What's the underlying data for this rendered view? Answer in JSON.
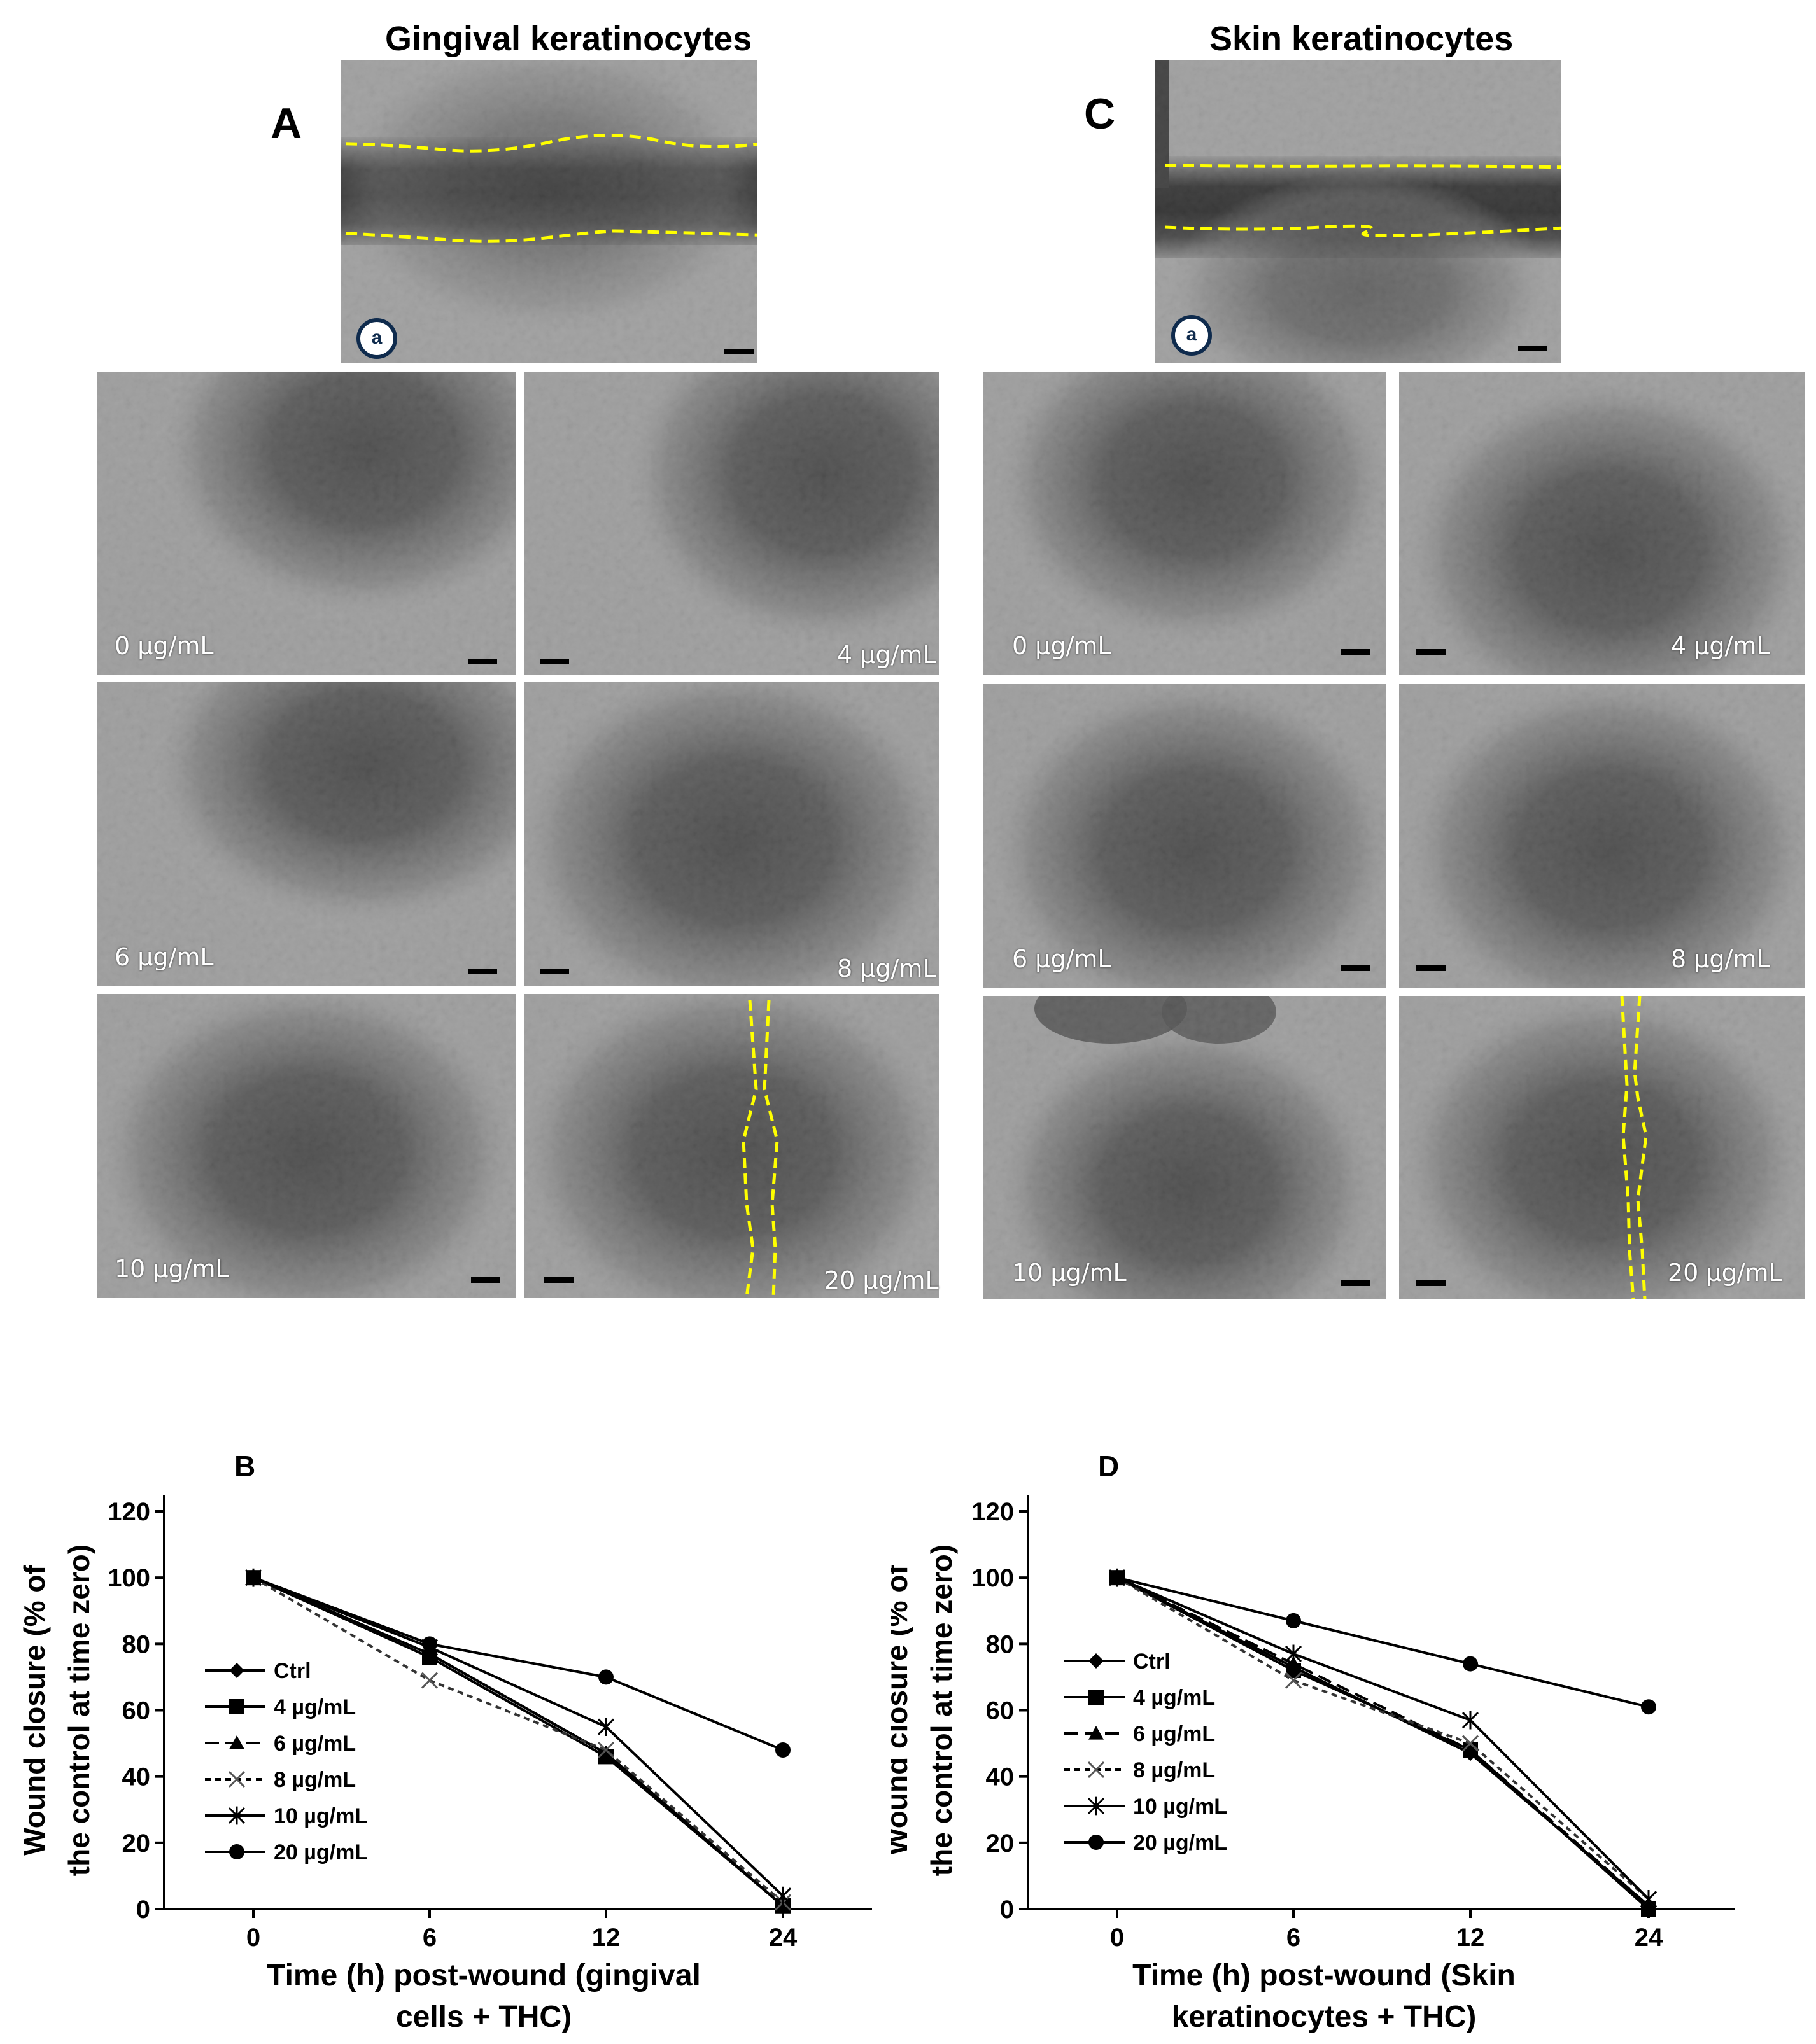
{
  "figure": {
    "left_title": "Gingival keratinocytes",
    "right_title": "Skin keratinocytes",
    "panel_A": "A",
    "panel_C": "C",
    "panel_B": "B",
    "panel_D": "D",
    "badge": "a",
    "concentrations": [
      "0 µg/mL",
      "4 µg/mL",
      "6 µg/mL",
      "8 µg/mL",
      "10 µg/mL",
      "20 µg/mL"
    ]
  },
  "colors": {
    "wound_outline": "#ffff00",
    "series_stroke": "#000000"
  },
  "chart_data": [
    {
      "type": "line",
      "panel": "B",
      "x": [
        0,
        6,
        12,
        24
      ],
      "xticks": [
        "0",
        "6",
        "12",
        "24"
      ],
      "ylim": [
        0,
        120
      ],
      "yticks": [
        0,
        20,
        40,
        60,
        80,
        100,
        120
      ],
      "ylabel_line1": "Wound closure (% of",
      "ylabel_line2": "the control at time zero)",
      "xlabel_line1": "Time (h) post-wound (gingival",
      "xlabel_line2": "cells + THC)",
      "legend_position": "left",
      "series": [
        {
          "name": "Ctrl",
          "values": [
            100,
            77,
            47,
            1
          ],
          "marker": "diamond",
          "dash": "solid"
        },
        {
          "name": "4 µg/mL",
          "values": [
            100,
            76,
            46,
            1
          ],
          "marker": "square",
          "dash": "solid"
        },
        {
          "name": "6 µg/mL",
          "values": [
            100,
            77,
            47,
            1
          ],
          "marker": "triangle",
          "dash": "longdash"
        },
        {
          "name": "8 µg/mL",
          "values": [
            100,
            69,
            48,
            2
          ],
          "marker": "x",
          "dash": "shortdash"
        },
        {
          "name": "10 µg/mL",
          "values": [
            100,
            79,
            55,
            4
          ],
          "marker": "star",
          "dash": "solid"
        },
        {
          "name": "20 µg/mL",
          "values": [
            100,
            80,
            70,
            48
          ],
          "marker": "circle",
          "dash": "solid"
        }
      ]
    },
    {
      "type": "line",
      "panel": "D",
      "x": [
        0,
        6,
        12,
        24
      ],
      "xticks": [
        "0",
        "6",
        "12",
        "24"
      ],
      "ylim": [
        0,
        120
      ],
      "yticks": [
        0,
        20,
        40,
        60,
        80,
        100,
        120
      ],
      "ylabel_line1": "Wound closure (% of",
      "ylabel_line2": "the control at time zero)",
      "xlabel_line1": "Time (h) post-wound (Skin",
      "xlabel_line2": "keratinocytes + THC)",
      "legend_position": "left",
      "series": [
        {
          "name": "Ctrl",
          "values": [
            100,
            73,
            47,
            1
          ],
          "marker": "diamond",
          "dash": "solid"
        },
        {
          "name": "4 µg/mL",
          "values": [
            100,
            72,
            48,
            0
          ],
          "marker": "square",
          "dash": "solid"
        },
        {
          "name": "6 µg/mL",
          "values": [
            100,
            74,
            48,
            1
          ],
          "marker": "triangle",
          "dash": "longdash"
        },
        {
          "name": "8 µg/mL",
          "values": [
            100,
            69,
            50,
            3
          ],
          "marker": "x",
          "dash": "shortdash"
        },
        {
          "name": "10 µg/mL",
          "values": [
            100,
            77,
            57,
            3
          ],
          "marker": "star",
          "dash": "solid"
        },
        {
          "name": "20 µg/mL",
          "values": [
            100,
            87,
            74,
            61
          ],
          "marker": "circle",
          "dash": "solid"
        }
      ]
    }
  ]
}
